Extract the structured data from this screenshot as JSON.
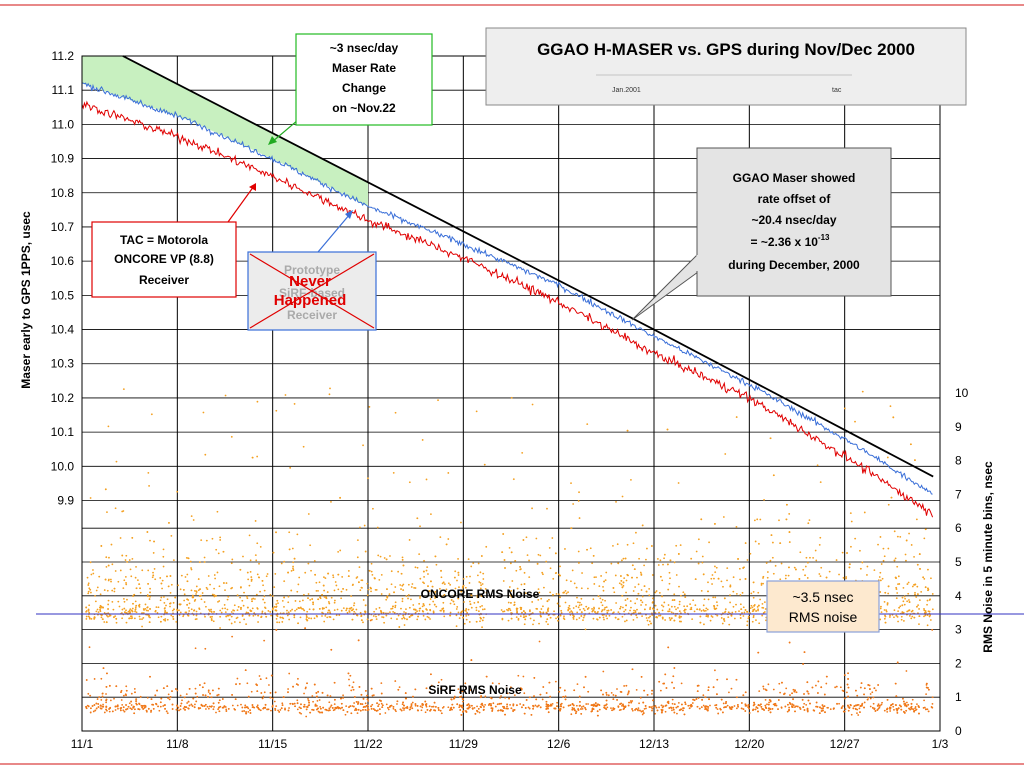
{
  "chart_data": {
    "type": "line",
    "title": "GGAO H-MASER vs. GPS during Nov/Dec 2000",
    "title_footer_left": "Jan.2001",
    "title_footer_right": "tac",
    "ylabel_left": "Maser early to GPS 1PPS, usec",
    "ylabel_right": "RMS Noise in 5 minute bins, nsec",
    "x_ticks": [
      "11/1",
      "11/8",
      "11/15",
      "11/22",
      "11/29",
      "12/6",
      "12/13",
      "12/20",
      "12/27",
      "1/3"
    ],
    "xlim_days": [
      0,
      63
    ],
    "ylim_left": [
      9.0,
      11.2
    ],
    "y_left_ticks": [
      "11.2",
      "11.1",
      "11.0",
      "10.9",
      "10.8",
      "10.7",
      "10.6",
      "10.5",
      "10.4",
      "10.3",
      "10.2",
      "10.1",
      "10.0",
      "9.9"
    ],
    "ylim_right": [
      0,
      10
    ],
    "y_right_ticks": [
      "0",
      "1",
      "2",
      "3",
      "4",
      "5",
      "6",
      "7",
      "8",
      "9",
      "10"
    ],
    "grid": true,
    "colors": {
      "motorola": "#e00000",
      "sirf": "#3a6fd8",
      "reference": "#000000",
      "wedge": "#c8f0c0",
      "oncore_noise": "#f4a020",
      "sirf_noise": "#f07818",
      "frame_line": "#e06060",
      "hline": "#3030c0"
    },
    "series": [
      {
        "name": "TAC = Motorola ONCORE VP (8.8) Receiver",
        "color": "#e00000",
        "points": [
          [
            0,
            11.06
          ],
          [
            8,
            10.95
          ],
          [
            15,
            10.83
          ],
          [
            21,
            10.72
          ],
          [
            28,
            10.61
          ],
          [
            35,
            10.48
          ],
          [
            42,
            10.33
          ],
          [
            49,
            10.2
          ],
          [
            56,
            10.03
          ],
          [
            62.5,
            9.86
          ]
        ]
      },
      {
        "name": "Prototype SiRF-based Receiver",
        "color": "#3a6fd8",
        "points": [
          [
            0,
            11.12
          ],
          [
            8,
            11.01
          ],
          [
            15,
            10.88
          ],
          [
            21,
            10.76
          ],
          [
            28,
            10.65
          ],
          [
            35,
            10.53
          ],
          [
            42,
            10.38
          ],
          [
            49,
            10.24
          ],
          [
            56,
            10.08
          ],
          [
            62.5,
            9.92
          ]
        ]
      },
      {
        "name": "Reference rate line",
        "color": "#000000",
        "points": [
          [
            3,
            11.2
          ],
          [
            22,
            10.81
          ],
          [
            42,
            10.4
          ],
          [
            62.5,
            9.97
          ]
        ]
      }
    ],
    "noise_bands": [
      {
        "name": "ONCORE RMS Noise",
        "center_nsec": 3.5,
        "gap_days": [
          29.9,
          30.8
        ]
      },
      {
        "name": "SiRF RMS Noise",
        "center_nsec": 0.7
      }
    ],
    "annotations": {
      "rate_change": [
        "~3 nsec/day",
        "Maser Rate",
        "Change",
        "on ~Nov.22"
      ],
      "motorola_label": [
        "TAC = Motorola",
        "ONCORE VP (8.8)",
        "Receiver"
      ],
      "sirf_label": [
        "Prototype",
        "SiRF-based",
        "Receiver"
      ],
      "never_happened": [
        "Never",
        "Happened"
      ],
      "offset_note": {
        "line1": "GGAO Maser showed",
        "line2": "rate offset of",
        "line3": "~20.4 nsec/day",
        "line4_prefix": "= ~2.36 x 10",
        "line4_exponent": "-13",
        "line5": "during December, 2000"
      },
      "oncore_noise_label": "ONCORE RMS Noise",
      "sirf_noise_label": "SiRF RMS Noise",
      "rms_noise_box": [
        "~3.5 nsec",
        "RMS noise"
      ]
    }
  }
}
